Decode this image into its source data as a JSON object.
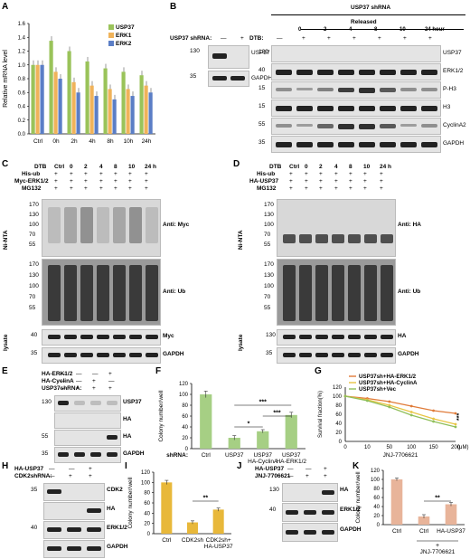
{
  "panels": {
    "A": "A",
    "B": "B",
    "C": "C",
    "D": "D",
    "E": "E",
    "F": "F",
    "G": "G",
    "H": "H",
    "I": "I",
    "J": "J",
    "K": "K"
  },
  "panelA": {
    "chart_data": {
      "type": "bar",
      "categories": [
        "Ctrl",
        "0h",
        "2h",
        "4h",
        "8h",
        "10h",
        "24h"
      ],
      "series": [
        {
          "name": "USP37",
          "color": "#9ac35a",
          "values": [
            1.0,
            1.35,
            1.2,
            1.05,
            0.95,
            0.9,
            0.85
          ]
        },
        {
          "name": "ERK1",
          "color": "#f0b35a",
          "values": [
            1.0,
            0.9,
            0.75,
            0.7,
            0.65,
            0.65,
            0.7
          ]
        },
        {
          "name": "ERK2",
          "color": "#5b7ec6",
          "values": [
            1.0,
            0.8,
            0.6,
            0.55,
            0.5,
            0.55,
            0.6
          ]
        }
      ],
      "ylabel": "Relative mRNA level",
      "ylim": [
        0,
        1.6
      ],
      "yticks": [
        "0.0",
        "0.2",
        "0.4",
        "0.6",
        "0.8",
        "1.0",
        "1.2",
        "1.4",
        "1.6"
      ]
    }
  },
  "panelB": {
    "title": "USP37 shRNA",
    "released": "Released",
    "shrna_label": "USP37 shRNA:",
    "shrna_signs": [
      "—",
      "+"
    ],
    "dtb_label": "DTB:",
    "dtb_signs": [
      "—",
      "+",
      "+",
      "+",
      "+",
      "+",
      "+"
    ],
    "times": [
      "0",
      "2",
      "4",
      "8",
      "10",
      "24 hour"
    ],
    "left_rows": [
      {
        "mw": "130",
        "label": "USP37"
      },
      {
        "mw": "35",
        "label": "GAPDH"
      }
    ],
    "right_rows": [
      {
        "mw": "130",
        "label": "USP37"
      },
      {
        "mw": "40",
        "label": "ERK1/2"
      },
      {
        "mw": "15",
        "label": "P-H3"
      },
      {
        "mw": "15",
        "label": "H3"
      },
      {
        "mw": "55",
        "label": "CyclinA2"
      },
      {
        "mw": "35",
        "label": "GAPDH"
      }
    ]
  },
  "panelC": {
    "header_cols": [
      "DTB",
      "Ctrl",
      "0",
      "2",
      "4",
      "8",
      "10",
      "24 h"
    ],
    "rows": [
      {
        "label": "His-ub",
        "signs": [
          "+",
          "+",
          "+",
          "+",
          "+",
          "+",
          "+"
        ]
      },
      {
        "label": "Myc-ERK1/2",
        "signs": [
          "+",
          "+",
          "+",
          "+",
          "+",
          "+",
          "+"
        ]
      },
      {
        "label": "MG132",
        "signs": [
          "+",
          "+",
          "+",
          "+",
          "+",
          "+",
          "+"
        ]
      }
    ],
    "side": "Ni-NTA",
    "lysate": "lysate",
    "mws_top": [
      "170",
      "130",
      "100",
      "70",
      "55"
    ],
    "mws_mid": [
      "170",
      "130",
      "100",
      "70",
      "55"
    ],
    "anti_top": "Anti: Myc",
    "anti_mid": "Anti: Ub",
    "lys_rows": [
      {
        "mw": "40",
        "label": "Myc"
      },
      {
        "mw": "35",
        "label": "GAPDH"
      }
    ]
  },
  "panelD": {
    "header_cols": [
      "DTB",
      "Ctrl",
      "0",
      "2",
      "4",
      "8",
      "10",
      "24 h"
    ],
    "rows": [
      {
        "label": "His-ub",
        "signs": [
          "+",
          "+",
          "+",
          "+",
          "+",
          "+",
          "+"
        ]
      },
      {
        "label": "HA-USP37",
        "signs": [
          "+",
          "+",
          "+",
          "+",
          "+",
          "+",
          "+"
        ]
      },
      {
        "label": "MG132",
        "signs": [
          "+",
          "+",
          "+",
          "+",
          "+",
          "+",
          "+"
        ]
      }
    ],
    "side": "Ni-NTA",
    "lysate": "lysate",
    "mws_top": [
      "170",
      "130",
      "100",
      "70",
      "55"
    ],
    "mws_mid": [
      "170",
      "130",
      "100",
      "70",
      "55"
    ],
    "anti_top": "Anti: HA",
    "anti_mid": "Anti: Ub",
    "lys_rows": [
      {
        "mw": "130",
        "label": "HA"
      },
      {
        "mw": "35",
        "label": "GAPDH"
      }
    ]
  },
  "panelE": {
    "rows": [
      {
        "label": "HA-ERK1/2",
        "signs": [
          "—",
          "—",
          "—",
          "+"
        ]
      },
      {
        "label": "HA-CyclinA",
        "signs": [
          "—",
          "—",
          "+",
          "—"
        ]
      },
      {
        "label": "USP37shRNA:",
        "signs": [
          "—",
          "+",
          "+",
          "+"
        ]
      }
    ],
    "blots": [
      {
        "mw": "130",
        "label": "USP37"
      },
      {
        "mw": "",
        "label": "HA"
      },
      {
        "mw": "55",
        "label": "HA"
      },
      {
        "mw": "35",
        "label": "GAPDH"
      }
    ]
  },
  "panelF": {
    "chart_data": {
      "type": "bar",
      "categories": [
        "Ctrl",
        "USP37",
        "USP37\nHA-CyclinA",
        "USP37\nHA-ERK1/2"
      ],
      "cat_lines": [
        [
          "Ctrl"
        ],
        [
          "USP37"
        ],
        [
          "USP37",
          "HA-CyclinA"
        ],
        [
          "USP37",
          "HA-ERK1/2"
        ]
      ],
      "values": [
        100,
        20,
        32,
        62
      ],
      "errors": [
        6,
        4,
        3,
        5
      ],
      "ylabel": "Colony number/well",
      "ylim": [
        0,
        120
      ],
      "yticks": [
        "0",
        "20",
        "40",
        "60",
        "80",
        "100",
        "120"
      ],
      "color": "#a6cf84",
      "xprefix": "shRNA:",
      "sig": [
        {
          "from": 1,
          "to": 3,
          "text": "***"
        },
        {
          "from": 1,
          "to": 2,
          "text": "*"
        },
        {
          "from": 2,
          "to": 3,
          "text": "***"
        }
      ]
    }
  },
  "panelG": {
    "chart_data": {
      "type": "line",
      "x": [
        0,
        10,
        50,
        100,
        150,
        200
      ],
      "xticks": [
        "0",
        "10",
        "50",
        "100",
        "150",
        "200"
      ],
      "xunit": "(μM)",
      "xlabel": "JNJ-7706621",
      "ylabel": "Survival fraction(%)",
      "ylim": [
        0,
        120
      ],
      "yticks": [
        "0",
        "20",
        "40",
        "60",
        "80",
        "100",
        "120"
      ],
      "series": [
        {
          "name": "USP37sh+HA-ERK1/2",
          "color": "#e07b39",
          "values": [
            100,
            95,
            88,
            78,
            68,
            62
          ]
        },
        {
          "name": "USP37sh+HA-CyclinA",
          "color": "#e8c544",
          "values": [
            100,
            92,
            80,
            65,
            50,
            38
          ]
        },
        {
          "name": "USP37sh+Vec",
          "color": "#8fbf5a",
          "values": [
            100,
            90,
            76,
            58,
            44,
            32
          ]
        }
      ],
      "sig": "***"
    }
  },
  "panelH": {
    "rows": [
      {
        "label": "HA-USP37",
        "signs": [
          "—",
          "—",
          "+"
        ]
      },
      {
        "label": "CDK2shRNA:",
        "signs": [
          "—",
          "+",
          "+"
        ]
      }
    ],
    "blots": [
      {
        "mw": "35",
        "label": "CDK2"
      },
      {
        "mw": "",
        "label": "HA"
      },
      {
        "mw": "40",
        "label": "ERK1/2"
      },
      {
        "mw": "",
        "label": "GAPDH"
      }
    ]
  },
  "panelI": {
    "chart_data": {
      "type": "bar",
      "cat_lines": [
        [
          "Ctrl"
        ],
        [
          "CDK2sh"
        ],
        [
          "CDK2sh+",
          "HA-USP37"
        ]
      ],
      "values": [
        100,
        22,
        47
      ],
      "errors": [
        4,
        3,
        3
      ],
      "ylabel": "Colony number/well",
      "ylim": [
        0,
        120
      ],
      "yticks": [
        "0",
        "20",
        "40",
        "60",
        "80",
        "100",
        "120"
      ],
      "color": "#e8b83a",
      "sig": [
        {
          "from": 1,
          "to": 2,
          "text": "**"
        }
      ]
    }
  },
  "panelJ": {
    "rows": [
      {
        "label": "HA-USP37",
        "signs": [
          "—",
          "—",
          "+"
        ]
      },
      {
        "label": "JNJ-7706621",
        "signs": [
          "—",
          "+",
          "+"
        ]
      }
    ],
    "blots": [
      {
        "mw": "130",
        "label": "HA"
      },
      {
        "mw": "40",
        "label": "ERK1/2"
      },
      {
        "mw": "",
        "label": "GAPDH"
      }
    ]
  },
  "panelK": {
    "chart_data": {
      "type": "bar",
      "cat_lines": [
        [
          "Ctrl"
        ],
        [
          "Ctrl"
        ],
        [
          "HA-USP37"
        ]
      ],
      "values": [
        100,
        18,
        45
      ],
      "errors": [
        3,
        4,
        4
      ],
      "ylabel": "Colony number/well",
      "ylim": [
        0,
        120
      ],
      "yticks": [
        "0",
        "20",
        "40",
        "60",
        "80",
        "100",
        "120"
      ],
      "color": "#e8b49a",
      "bracket_label": "JNJ-7706621",
      "bracket_plus": "+",
      "sig": [
        {
          "from": 1,
          "to": 2,
          "text": "**"
        }
      ]
    }
  }
}
